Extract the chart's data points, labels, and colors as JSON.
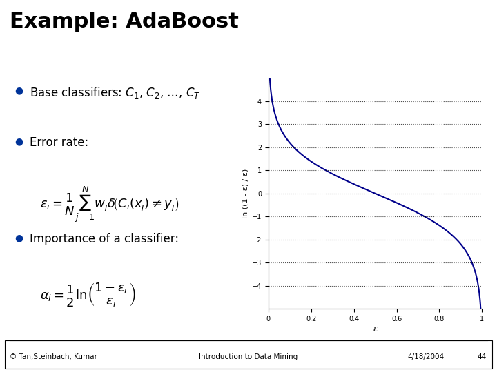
{
  "title": "Example: AdaBoost",
  "title_fontsize": 22,
  "title_fontweight": "bold",
  "bg_color": "#ffffff",
  "header_bar_colors": [
    "#00bcd4",
    "#9c27b0"
  ],
  "bullet_color": "#003399",
  "bullet1": "Base classifiers: C",
  "bullet2": "Error rate:",
  "bullet3": "Importance of a classifier:",
  "footer_left": "© Tan,Steinbach, Kumar",
  "footer_center": "Introduction to Data Mining",
  "footer_right": "4/18/2004",
  "footer_page": "44",
  "plot_line_color": "#00008b",
  "plot_ylabel": "ln ((1 - ε) / ε)",
  "plot_xlabel": "ε",
  "plot_xlim": [
    0,
    1
  ],
  "plot_ylim": [
    -5,
    5
  ],
  "plot_yticks": [
    -4,
    -3,
    -2,
    -1,
    0,
    1,
    2,
    3,
    4
  ],
  "plot_xticks": [
    0,
    0.2,
    0.4,
    0.6,
    0.8,
    1
  ],
  "plot_grid_color": "#000000",
  "plot_grid_style": "dotted"
}
